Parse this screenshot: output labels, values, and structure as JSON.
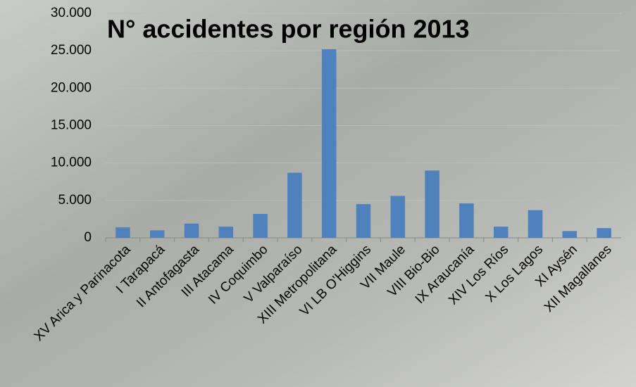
{
  "chart_data": {
    "type": "bar",
    "title": "N° accidentes por región 2013",
    "categories": [
      "XV Arica y Parinacota",
      "I Tarapacá",
      "II Antofagasta",
      "III Atacama",
      "IV Coquimbo",
      "V Valparaíso",
      "XIII Metropolitana",
      "VI LB O'Higgins",
      "VII Maule",
      "VIII Bio-Bio",
      "IX Araucanía",
      "XIV Los Ríos",
      "X Los Lagos",
      "XI Aysén",
      "XII Magallanes"
    ],
    "values": [
      1400,
      1000,
      1900,
      1500,
      3200,
      8700,
      25200,
      4500,
      5600,
      9000,
      4600,
      1500,
      3700,
      900,
      1300
    ],
    "color": "#4f81bd",
    "ylim": [
      0,
      30000
    ],
    "yticks": [
      0,
      {
        "value": 5000,
        "label": "5.000"
      },
      {
        "value": 10000,
        "label": "10.000"
      },
      {
        "value": 15000,
        "label": "15.000"
      },
      {
        "value": 20000,
        "label": "20.000"
      },
      {
        "value": 25000,
        "label": "25.000"
      },
      {
        "value": 30000,
        "label": "30.000"
      }
    ],
    "grid": true
  }
}
